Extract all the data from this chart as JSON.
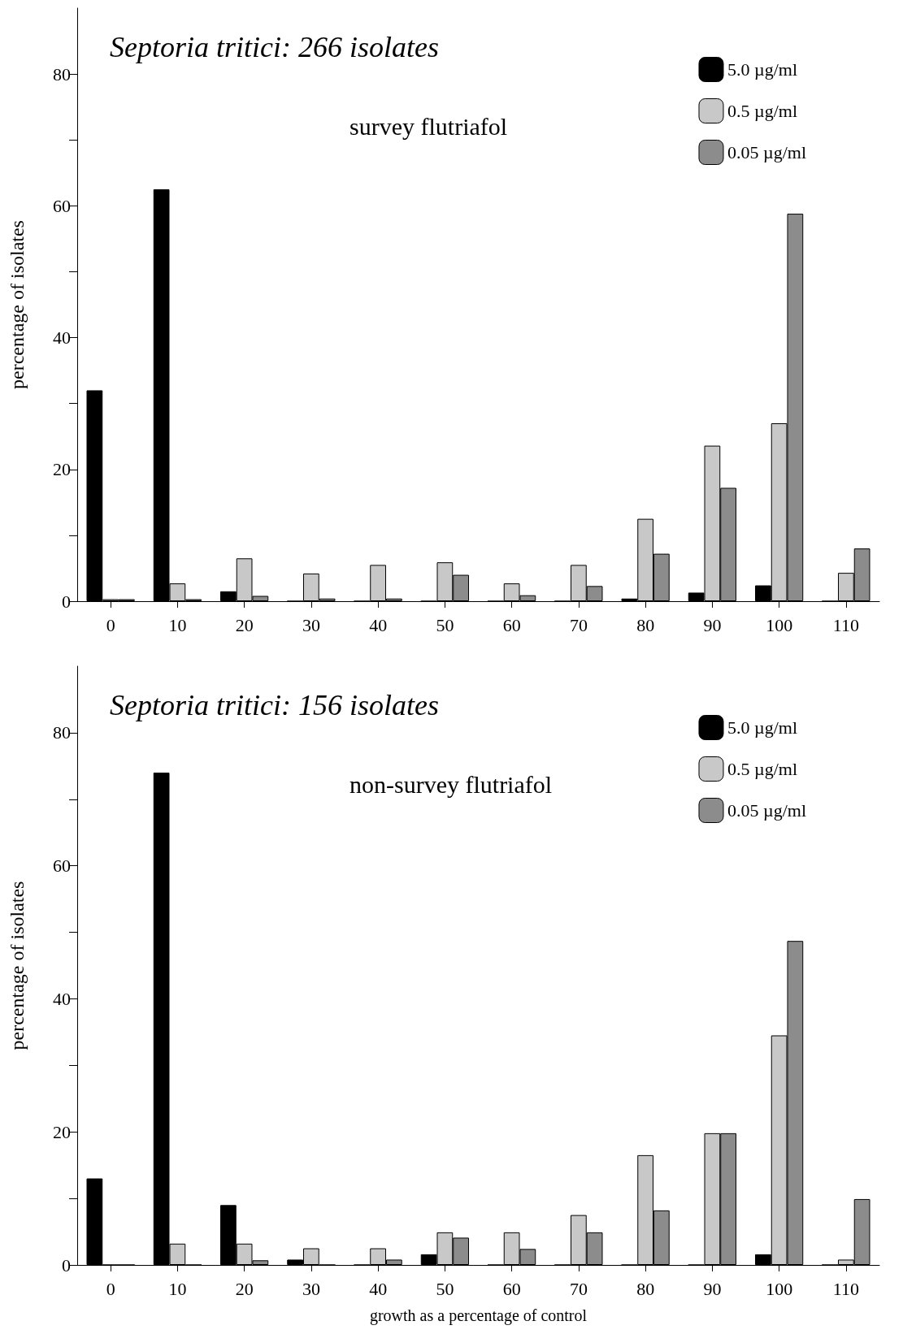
{
  "chart_data": [
    {
      "type": "bar",
      "title": "Septoria tritici: 266 isolates",
      "ylabel": "percentage of isolates",
      "annotations": [
        "survey flutriafol"
      ],
      "categories": [
        "0",
        "10",
        "20",
        "30",
        "40",
        "50",
        "60",
        "70",
        "80",
        "90",
        "100",
        "110"
      ],
      "series": [
        {
          "name": "5.0 µg/ml",
          "color": "#000000",
          "values": [
            32,
            62.5,
            1.5,
            0,
            0,
            0,
            0,
            0,
            0.4,
            1.3,
            2.4,
            0
          ]
        },
        {
          "name": "0.5 µg/ml",
          "color": "#c8c8c8",
          "values": [
            0.3,
            2.7,
            6.5,
            4.2,
            5.5,
            5.9,
            2.7,
            5.5,
            12.5,
            23.6,
            27,
            4.3
          ]
        },
        {
          "name": "0.05 µg/ml",
          "color": "#8c8c8c",
          "values": [
            0.3,
            0.3,
            0.8,
            0.4,
            0.4,
            4,
            0.9,
            2.3,
            7.2,
            17.2,
            58.8,
            8
          ]
        }
      ],
      "ylim": [
        0,
        90
      ],
      "yticks": [
        0,
        {
          "value": 10,
          "label": null
        },
        20,
        {
          "value": 30,
          "label": null
        },
        40,
        {
          "value": 50,
          "label": null
        },
        60,
        {
          "value": 70,
          "label": null
        },
        80
      ],
      "grid": false,
      "legend": "top right"
    },
    {
      "type": "bar",
      "title": "Septoria tritici: 156 isolates",
      "ylabel": "percentage of isolates",
      "xlabel": "growth as a percentage of control",
      "annotations": [
        "non-survey flutriafol"
      ],
      "categories": [
        "0",
        "10",
        "20",
        "30",
        "40",
        "50",
        "60",
        "70",
        "80",
        "90",
        "100",
        "110"
      ],
      "series": [
        {
          "name": "5.0 µg/ml",
          "color": "#000000",
          "values": [
            13,
            74,
            9,
            0.8,
            0,
            1.6,
            0,
            0,
            0,
            0,
            1.6,
            0
          ]
        },
        {
          "name": "0.5 µg/ml",
          "color": "#c8c8c8",
          "values": [
            0,
            3.2,
            3.2,
            2.5,
            2.5,
            4.9,
            4.9,
            7.5,
            16.5,
            19.8,
            34.5,
            0.8
          ]
        },
        {
          "name": "0.05 µg/ml",
          "color": "#8c8c8c",
          "values": [
            0,
            0,
            0.7,
            0,
            0.8,
            4.1,
            2.4,
            4.9,
            8.2,
            19.8,
            48.7,
            9.9
          ]
        }
      ],
      "ylim": [
        0,
        90
      ],
      "yticks": [
        0,
        {
          "value": 10,
          "label": null
        },
        20,
        {
          "value": 30,
          "label": null
        },
        40,
        {
          "value": 50,
          "label": null
        },
        60,
        {
          "value": 70,
          "label": null
        },
        80
      ],
      "grid": false,
      "legend": "top right"
    }
  ]
}
